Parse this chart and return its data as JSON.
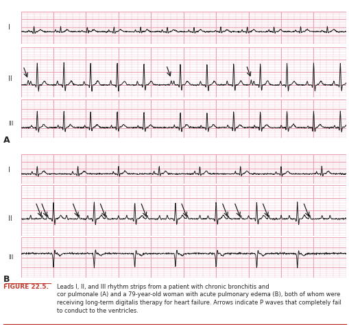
{
  "bg_color": "#f9d0d8",
  "ecg_color": "#1a1a1a",
  "grid_color_major": "#e8a0b0",
  "grid_color_minor": "#f0c0cc",
  "panel_A_label": "A",
  "panel_B_label": "B",
  "lead_labels": [
    "I",
    "II",
    "III"
  ],
  "figure_label": "FIGURE 22.5.",
  "caption_line1": "Leads I, II, and III rhythm strips from a patient with chronic bronchitis and",
  "caption_line2": "cor pulmonale (A) and a 79-year-old woman with acute pulmonary edema (B), both of whom were",
  "caption_line3": "receiving long-term digitalis therapy for heart failure. Arrows indicate P waves that completely fail",
  "caption_line4": "to conduct to the ventricles.",
  "fig_label_color": "#c0392b",
  "text_color": "#222222",
  "arrow_color": "#1a1a1a",
  "outer_bg": "#ffffff",
  "border_color": "#c0392b",
  "figsize": [
    5.1,
    4.74
  ],
  "dpi": 100
}
